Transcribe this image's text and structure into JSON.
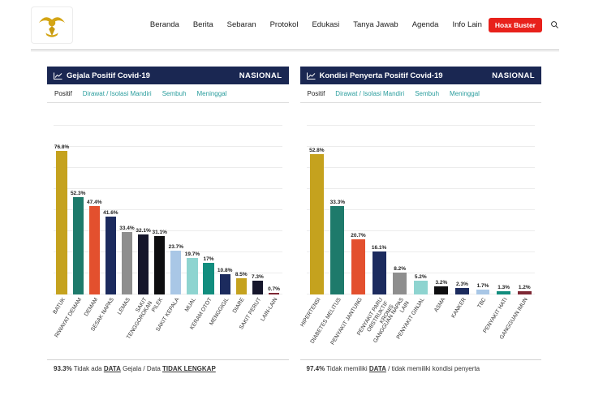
{
  "header": {
    "nav_items": [
      "Beranda",
      "Berita",
      "Sebaran",
      "Protokol",
      "Edukasi",
      "Tanya Jawab",
      "Agenda",
      "Info Lain"
    ],
    "hoax_buster_label": "Hoax Buster",
    "search_icon": "search-icon",
    "logo": "garuda-emblem"
  },
  "colors": {
    "header_navy": "#1a2752",
    "accent_red": "#e8211b",
    "tab_teal": "#2a9d9d",
    "logo_gold": "#d4a515"
  },
  "chart_data": [
    {
      "type": "bar",
      "title": "Gejala Positif Covid-19",
      "region_label": "NASIONAL",
      "tabs": [
        "Positif",
        "Dirawat / Isolasi Mandiri",
        "Sembuh",
        "Meninggal"
      ],
      "active_tab": "Positif",
      "categories": [
        "BATUK",
        "RIWAYAT DEMAM",
        "DEMAM",
        "SESAK NAPAS",
        "LEMAS",
        "SAKIT\nTENGGOROKAN",
        "PILEK",
        "SAKIT KEPALA",
        "MUAL",
        "KERAM OTOT",
        "MENGGIGIL",
        "DIARE",
        "SAKIT PERUT",
        "LAIN-LAIN"
      ],
      "values": [
        76.8,
        52.3,
        47.4,
        41.6,
        33.4,
        32.1,
        31.1,
        23.7,
        19.7,
        17,
        10.8,
        8.5,
        7.3,
        0.7
      ],
      "value_suffix": "%",
      "bar_colors": [
        "#C5A21E",
        "#1E7A6B",
        "#E3502E",
        "#1C2B5E",
        "#8E8E8E",
        "#15162B",
        "#0E0E10",
        "#A9C7E6",
        "#8ED4D0",
        "#128D7E",
        "#1C2B5E",
        "#C5A21E",
        "#15162B",
        "#7E2734"
      ],
      "ylim": [
        0,
        100
      ],
      "grid": true,
      "footnote": {
        "pct": "93.3%",
        "text1": " Tidak ada ",
        "link1": "DATA",
        "text2": " Gejala / Data ",
        "link2": "TIDAK LENGKAP"
      }
    },
    {
      "type": "bar",
      "title": "Kondisi Penyerta Positif Covid-19",
      "region_label": "NASIONAL",
      "tabs": [
        "Positif",
        "Dirawat / Isolasi Mandiri",
        "Sembuh",
        "Meninggal"
      ],
      "active_tab": "Positif",
      "categories": [
        "HIPERTENSI",
        "DIABETES MELITUS",
        "PENYAKIT JANTUNG",
        "PENYAKIT PARU\nOBSTRUKTIF\nKRONIS",
        "GANGGUAN NAPAS\nLAIN",
        "PENYAKIT GINJAL",
        "ASMA",
        "KANKER",
        "TBC",
        "PENYAKIT HATI",
        "GANGGUAN IMUN"
      ],
      "values": [
        52.8,
        33.3,
        20.7,
        16.1,
        8.2,
        5.2,
        3.2,
        2.3,
        1.7,
        1.3,
        1.2
      ],
      "value_suffix": "%",
      "bar_colors": [
        "#C5A21E",
        "#1E7A6B",
        "#E3502E",
        "#1C2B5E",
        "#8E8E8E",
        "#8ED4D0",
        "#0E0E10",
        "#1C2B5E",
        "#A9C7E6",
        "#128D7E",
        "#7E2734"
      ],
      "ylim": [
        0,
        70
      ],
      "grid": true,
      "footnote": {
        "pct": "97.4%",
        "text1": " Tidak memiliki ",
        "link1": "DATA",
        "text2": " / tidak memiliki kondisi penyerta",
        "link2": ""
      }
    }
  ]
}
